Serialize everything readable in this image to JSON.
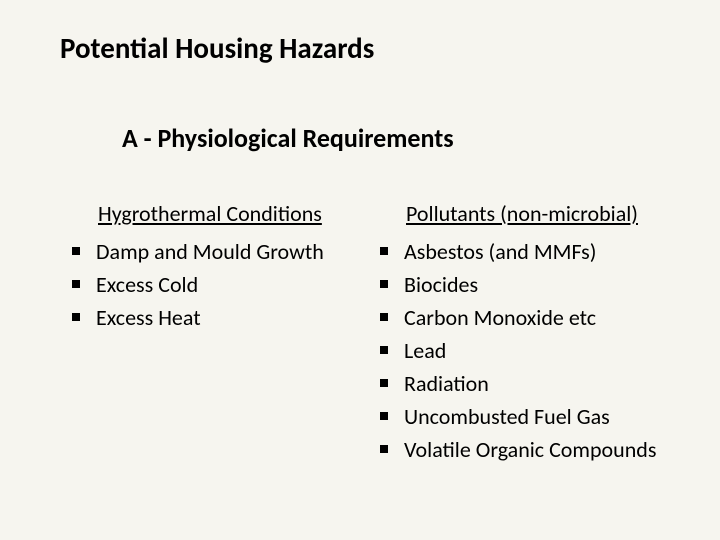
{
  "slide": {
    "title": "Potential Housing Hazards",
    "subtitle": "A - Physiological Requirements",
    "left": {
      "heading": "Hygrothermal Conditions",
      "items": [
        "Damp and Mould Growth",
        "Excess Cold",
        "Excess Heat"
      ]
    },
    "right": {
      "heading": "Pollutants (non-microbial)",
      "items": [
        "Asbestos (and MMFs)",
        "Biocides",
        "Carbon Monoxide etc",
        "Lead",
        "Radiation",
        "Uncombusted Fuel Gas",
        "Volatile Organic Compounds"
      ]
    },
    "colors": {
      "background": "#f6f5ef",
      "text": "#000000",
      "bullet": "#000000"
    },
    "fonts": {
      "title_size": 29,
      "subtitle_size": 26,
      "heading_size": 22,
      "item_size": 22
    }
  }
}
